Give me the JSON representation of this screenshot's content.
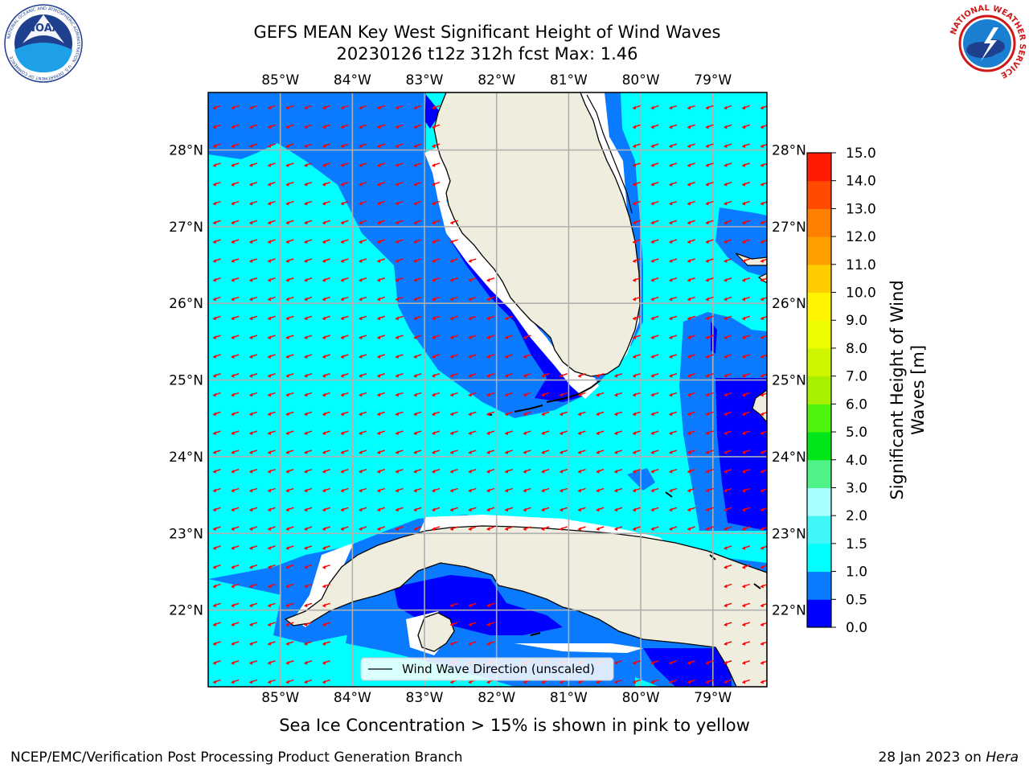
{
  "title": {
    "line1": "GEFS MEAN Key West Significant Height of Wind Waves",
    "line2": "20230126 t12z 312h fcst   Max: 1.46"
  },
  "map": {
    "lon_range": [
      -86.0,
      -78.25
    ],
    "lat_range": [
      21.0,
      28.75
    ],
    "lon_ticks": [
      "85°W",
      "84°W",
      "83°W",
      "82°W",
      "81°W",
      "80°W",
      "79°W"
    ],
    "lat_ticks": [
      "22°N",
      "23°N",
      "24°N",
      "25°N",
      "26°N",
      "27°N",
      "28°N"
    ],
    "legend": "Wind Wave Direction (unscaled)",
    "land_color": "#efedde",
    "arrow_color": "#ff0000"
  },
  "colorbar": {
    "label_line1": "Significant Height of Wind",
    "label_line2": "Waves [m]",
    "ticks": [
      "0.0",
      "0.5",
      "1.0",
      "1.5",
      "2.0",
      "3.0",
      "4.0",
      "5.0",
      "6.0",
      "7.0",
      "8.0",
      "9.0",
      "10.0",
      "11.0",
      "12.0",
      "13.0",
      "14.0",
      "15.0"
    ],
    "colors": [
      "#0000ff",
      "#0a7bff",
      "#00ffff",
      "#3ff5f5",
      "#a8ffff",
      "#4ef287",
      "#00e619",
      "#4ef20c",
      "#a6f000",
      "#cff500",
      "#edfd00",
      "#fff500",
      "#ffcc00",
      "#ff9f00",
      "#ff7f00",
      "#ff4a00",
      "#ff1a00"
    ]
  },
  "logos": {
    "noaa_text": "NOAA",
    "noaa_ring": "NATIONAL OCEANIC AND ATMOSPHERIC ADMINISTRATION · U.S. DEPARTMENT OF COMMERCE",
    "nws_ring": "NATIONAL WEATHER SERVICE"
  },
  "footer": {
    "note": "Sea Ice Concentration > 15% is shown in pink to yellow",
    "credit": "NCEP/EMC/Verification Post Processing Product Generation Branch",
    "date": "28 Jan 2023 on",
    "machine": "Hera"
  }
}
